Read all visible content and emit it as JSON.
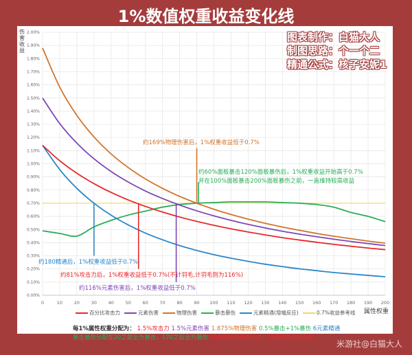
{
  "title": "1%数值权重收益变化线",
  "credits": [
    "图表制作：白猫大人",
    "制图思路：个一个二",
    "精通公式：核子安妮1"
  ],
  "watermark": "米游社@白猫大人",
  "chart_data": {
    "type": "line",
    "title": "1%数值权重收益变化线",
    "xlabel": "属性权重",
    "ylabel": "伤害收益",
    "xlim": [
      0,
      200
    ],
    "ylim": [
      0,
      2.0
    ],
    "x_ticks": [
      "0",
      "10",
      "20",
      "30",
      "40",
      "50",
      "60",
      "70",
      "80",
      "90",
      "100",
      "110",
      "120",
      "130",
      "140",
      "150",
      "160",
      "170",
      "180",
      "190",
      "200"
    ],
    "y_ticks": [
      "0.00%",
      "0.10%",
      "0.20%",
      "0.30%",
      "0.40%",
      "0.50%",
      "0.60%",
      "0.70%",
      "0.80%",
      "0.90%",
      "1.00%",
      "1.10%",
      "1.20%",
      "1.30%",
      "1.40%",
      "1.50%",
      "1.60%",
      "1.70%",
      "1.80%",
      "1.90%",
      "2.00%"
    ],
    "grid": true,
    "legend_position": "bottom",
    "x": [
      0,
      10,
      20,
      30,
      40,
      50,
      60,
      70,
      80,
      90,
      100,
      110,
      120,
      130,
      140,
      150,
      160,
      170,
      180,
      190,
      200
    ],
    "series": [
      {
        "name": "百分比攻击力",
        "color": "#e8262a",
        "values": [
          1.14,
          1.023,
          0.928,
          0.849,
          0.782,
          0.725,
          0.676,
          0.633,
          0.595,
          0.562,
          0.532,
          0.505,
          0.481,
          0.459,
          0.438,
          0.42,
          0.403,
          0.387,
          0.373,
          0.359,
          0.347
        ]
      },
      {
        "name": "元素伤害",
        "color": "#7d46b4",
        "values": [
          1.5,
          1.306,
          1.157,
          1.038,
          0.941,
          0.861,
          0.793,
          0.736,
          0.686,
          0.642,
          0.604,
          0.57,
          0.539,
          0.512,
          0.487,
          0.465,
          0.445,
          0.426,
          0.409,
          0.393,
          0.378
        ]
      },
      {
        "name": "物理伤害",
        "color": "#d0742a",
        "values": [
          1.88,
          1.583,
          1.368,
          1.204,
          1.075,
          0.971,
          0.885,
          0.813,
          0.752,
          0.7,
          0.654,
          0.614,
          0.579,
          0.547,
          0.519,
          0.494,
          0.47,
          0.449,
          0.43,
          0.412,
          0.396
        ]
      },
      {
        "name": "暴击暴伤",
        "color": "#27ad58",
        "values": [
          0.49,
          0.47,
          0.45,
          0.52,
          0.57,
          0.61,
          0.64,
          0.67,
          0.69,
          0.7,
          0.705,
          0.71,
          0.71,
          0.71,
          0.705,
          0.7,
          0.69,
          0.67,
          0.63,
          0.6,
          0.56
        ]
      },
      {
        "name": "元素精通(增幅反应)",
        "color": "#2a86c8",
        "values": [
          1.14,
          0.956,
          0.813,
          0.7,
          0.609,
          0.535,
          0.473,
          0.422,
          0.378,
          0.341,
          0.309,
          0.282,
          0.258,
          0.236,
          0.218,
          0.201,
          0.187,
          0.173,
          0.162,
          0.151,
          0.141
        ]
      },
      {
        "name": "0.7%收益参考线",
        "color": "#f5d65a",
        "values": [
          0.7,
          0.7,
          0.7,
          0.7,
          0.7,
          0.7,
          0.7,
          0.7,
          0.7,
          0.7,
          0.7,
          0.7,
          0.7,
          0.7,
          0.7,
          0.7,
          0.7,
          0.7,
          0.7,
          0.7,
          0.7
        ]
      }
    ],
    "markers": [
      {
        "x": 90,
        "y_from": 0.7,
        "y_to": 1.12,
        "color": "#d0742a"
      },
      {
        "x": 91,
        "y_from": 0.7,
        "y_to": 0.86,
        "color": "#27ad58"
      },
      {
        "x": 30,
        "y_from": 0.7,
        "y_to": 0.3,
        "color": "#2a86c8"
      },
      {
        "x": 56,
        "y_from": 0.7,
        "y_to": 0.2,
        "color": "#e8262a"
      },
      {
        "x": 78,
        "y_from": 0.7,
        "y_to": 0.1,
        "color": "#7d46b4"
      }
    ],
    "annotations": {
      "physical": "约169%物理伤害后，1%权重收益低于0.7%",
      "crit1": "约60%面板暴击120%面板暴伤后，1%权重收益开始高于0.7%",
      "crit2": "并在100%面板暴击200%面板暴伤之前，一直维持较高收益",
      "em": "约180精通后，1%权重收益低于0.7%",
      "atk": "约81%攻击力后，1%权重收益低于0.7%(不计羽毛,计羽毛则为116%)",
      "elem": "约116%元素伤害后，1%权重收益低于0.7%"
    }
  },
  "notes": {
    "label": "每1%属性权重分配为：",
    "atk": "1.5%攻击力",
    "elem": "1.5%元素伤害",
    "phys": "1.875%物理伤害",
    "crit": "0.5%暴击+1%暴伤",
    "em": "6元素精通",
    "line2_green": "暴击暴伤分配在20之前全为暴击，170之后全为暴伤",
    "line2_red": "攻击收益白值取900，羽毛攻击力为311"
  }
}
